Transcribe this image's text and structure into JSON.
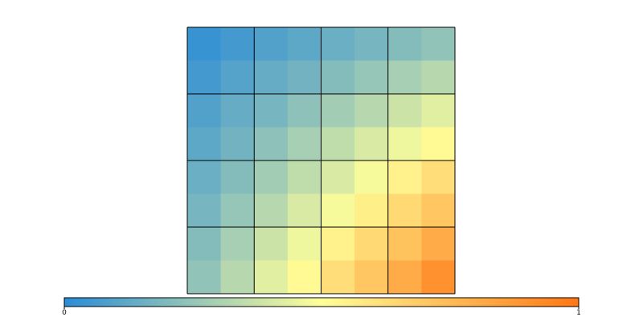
{
  "chart_data": {
    "type": "heatmap",
    "colormap": [
      "#2b8cd6",
      "#ffff99",
      "#ff7714"
    ],
    "z": [
      [
        0.03,
        0.06,
        0.09,
        0.12,
        0.15,
        0.18,
        0.21,
        0.24
      ],
      [
        0.06,
        0.1,
        0.14,
        0.17,
        0.21,
        0.25,
        0.29,
        0.33
      ],
      [
        0.09,
        0.14,
        0.18,
        0.23,
        0.28,
        0.33,
        0.38,
        0.43
      ],
      [
        0.12,
        0.17,
        0.23,
        0.29,
        0.35,
        0.41,
        0.46,
        0.52
      ],
      [
        0.15,
        0.21,
        0.28,
        0.35,
        0.41,
        0.48,
        0.55,
        0.62
      ],
      [
        0.18,
        0.25,
        0.33,
        0.41,
        0.48,
        0.56,
        0.64,
        0.71
      ],
      [
        0.21,
        0.29,
        0.38,
        0.46,
        0.55,
        0.64,
        0.72,
        0.81
      ],
      [
        0.24,
        0.33,
        0.43,
        0.52,
        0.62,
        0.71,
        0.81,
        0.9
      ]
    ],
    "clim": [
      0,
      1
    ],
    "cticks": [
      0,
      1
    ],
    "grid": true
  }
}
